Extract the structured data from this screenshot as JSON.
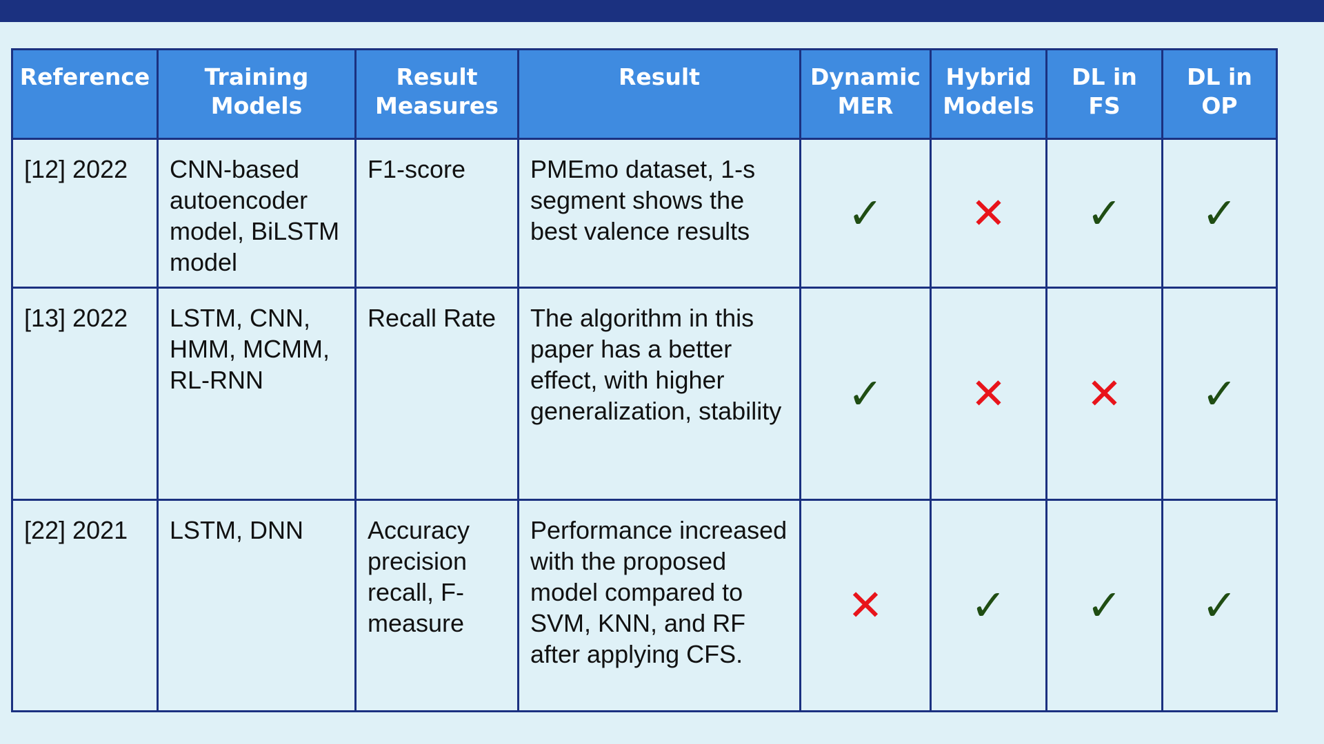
{
  "colors": {
    "top_bar": "#1b3180",
    "header_bg": "#3f8be0",
    "border": "#1b3180",
    "background": "#dff1f7",
    "check": "#1f4d13",
    "cross": "#e8141b"
  },
  "table": {
    "headers": {
      "reference": "Reference",
      "training_models": "Training Models",
      "result_measures": "Result Measures",
      "result": "Result",
      "dynamic_mer": "Dynamic MER",
      "hybrid_models": "Hybrid Models",
      "dl_in_fs": "DL in FS",
      "dl_in_op": "DL in OP"
    },
    "rows": [
      {
        "reference": "[12] 2022",
        "training_models": "CNN-based autoencoder model, BiLSTM model",
        "result_measures": "F1-score",
        "result": "PMEmo dataset, 1-s segment shows the best valence results",
        "dynamic_mer": "✓",
        "hybrid_models": "✕",
        "dl_in_fs": "✓",
        "dl_in_op": "✓"
      },
      {
        "reference": "[13] 2022",
        "training_models": "LSTM, CNN, HMM, MCMM, RL-RNN",
        "result_measures": "Recall Rate",
        "result": "The algorithm in this paper has a better effect, with higher generalization, stability",
        "dynamic_mer": "✓",
        "hybrid_models": "✕",
        "dl_in_fs": "✕",
        "dl_in_op": "✓"
      },
      {
        "reference": "[22] 2021",
        "training_models": "LSTM, DNN",
        "result_measures": "Accuracy precision recall, F-measure",
        "result": "Performance increased with the proposed model compared to SVM, KNN, and RF after applying CFS.",
        "dynamic_mer": "✕",
        "hybrid_models": "✓",
        "dl_in_fs": "✓",
        "dl_in_op": "✓"
      }
    ]
  }
}
